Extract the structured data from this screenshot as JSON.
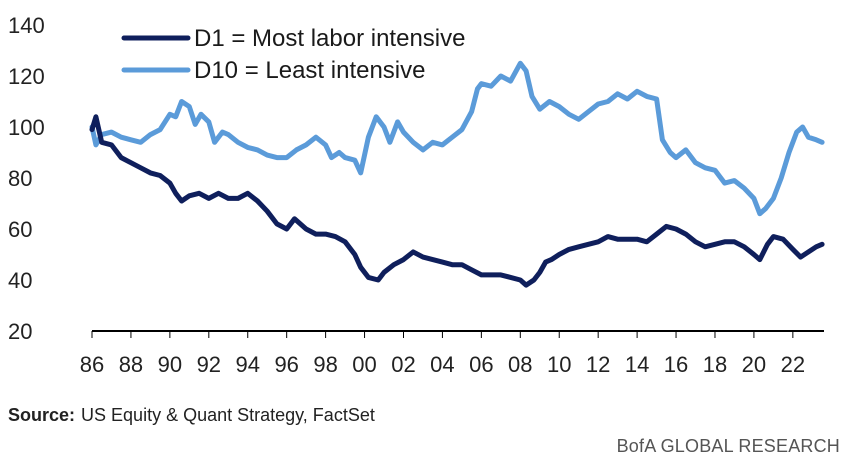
{
  "chart_data": {
    "type": "line",
    "xlim": [
      1986,
      2023.6
    ],
    "ylim": [
      20,
      140
    ],
    "y_ticks": [
      20,
      40,
      60,
      80,
      100,
      120,
      140
    ],
    "x_tick_values": [
      1986,
      1988,
      1990,
      1992,
      1994,
      1996,
      1998,
      2000,
      2002,
      2004,
      2006,
      2008,
      2010,
      2012,
      2014,
      2016,
      2018,
      2020,
      2022
    ],
    "x_tick_labels": [
      "86",
      "88",
      "90",
      "92",
      "94",
      "96",
      "98",
      "00",
      "02",
      "04",
      "06",
      "08",
      "10",
      "12",
      "14",
      "16",
      "18",
      "20",
      "22"
    ],
    "grid": false,
    "legend_position": "top-left",
    "series": [
      {
        "name": "D1 = Most labor intensive",
        "color": "#0f1f5c",
        "points": [
          [
            1986.0,
            99
          ],
          [
            1986.2,
            104
          ],
          [
            1986.5,
            94
          ],
          [
            1987.0,
            93
          ],
          [
            1987.5,
            88
          ],
          [
            1988.0,
            86
          ],
          [
            1988.5,
            84
          ],
          [
            1989.0,
            82
          ],
          [
            1989.5,
            81
          ],
          [
            1990.0,
            78
          ],
          [
            1990.3,
            74
          ],
          [
            1990.6,
            71
          ],
          [
            1991.0,
            73
          ],
          [
            1991.5,
            74
          ],
          [
            1992.0,
            72
          ],
          [
            1992.5,
            74
          ],
          [
            1993.0,
            72
          ],
          [
            1993.5,
            72
          ],
          [
            1994.0,
            74
          ],
          [
            1994.5,
            71
          ],
          [
            1995.0,
            67
          ],
          [
            1995.5,
            62
          ],
          [
            1996.0,
            60
          ],
          [
            1996.4,
            64
          ],
          [
            1997.0,
            60
          ],
          [
            1997.5,
            58
          ],
          [
            1998.0,
            58
          ],
          [
            1998.5,
            57
          ],
          [
            1999.0,
            55
          ],
          [
            1999.5,
            50
          ],
          [
            1999.8,
            45
          ],
          [
            2000.2,
            41
          ],
          [
            2000.7,
            40
          ],
          [
            2001.0,
            43
          ],
          [
            2001.5,
            46
          ],
          [
            2002.0,
            48
          ],
          [
            2002.5,
            51
          ],
          [
            2003.0,
            49
          ],
          [
            2003.5,
            48
          ],
          [
            2004.0,
            47
          ],
          [
            2004.5,
            46
          ],
          [
            2005.0,
            46
          ],
          [
            2005.5,
            44
          ],
          [
            2006.0,
            42
          ],
          [
            2006.5,
            42
          ],
          [
            2007.0,
            42
          ],
          [
            2007.5,
            41
          ],
          [
            2008.0,
            40
          ],
          [
            2008.3,
            38
          ],
          [
            2008.7,
            40
          ],
          [
            2009.0,
            43
          ],
          [
            2009.3,
            47
          ],
          [
            2009.6,
            48
          ],
          [
            2010.0,
            50
          ],
          [
            2010.5,
            52
          ],
          [
            2011.0,
            53
          ],
          [
            2011.5,
            54
          ],
          [
            2012.0,
            55
          ],
          [
            2012.5,
            57
          ],
          [
            2013.0,
            56
          ],
          [
            2013.5,
            56
          ],
          [
            2014.0,
            56
          ],
          [
            2014.5,
            55
          ],
          [
            2015.0,
            58
          ],
          [
            2015.5,
            61
          ],
          [
            2016.0,
            60
          ],
          [
            2016.5,
            58
          ],
          [
            2017.0,
            55
          ],
          [
            2017.5,
            53
          ],
          [
            2018.0,
            54
          ],
          [
            2018.5,
            55
          ],
          [
            2019.0,
            55
          ],
          [
            2019.5,
            53
          ],
          [
            2020.0,
            50
          ],
          [
            2020.3,
            48
          ],
          [
            2020.7,
            54
          ],
          [
            2021.0,
            57
          ],
          [
            2021.5,
            56
          ],
          [
            2022.0,
            52
          ],
          [
            2022.4,
            49
          ],
          [
            2022.8,
            51
          ],
          [
            2023.2,
            53
          ],
          [
            2023.5,
            54
          ]
        ]
      },
      {
        "name": "D10 = Least intensive",
        "color": "#5b9bd9",
        "points": [
          [
            1986.0,
            100
          ],
          [
            1986.2,
            93
          ],
          [
            1986.5,
            97
          ],
          [
            1987.0,
            98
          ],
          [
            1987.5,
            96
          ],
          [
            1988.0,
            95
          ],
          [
            1988.5,
            94
          ],
          [
            1989.0,
            97
          ],
          [
            1989.5,
            99
          ],
          [
            1990.0,
            105
          ],
          [
            1990.3,
            104
          ],
          [
            1990.6,
            110
          ],
          [
            1991.0,
            108
          ],
          [
            1991.3,
            101
          ],
          [
            1991.6,
            105
          ],
          [
            1992.0,
            102
          ],
          [
            1992.3,
            94
          ],
          [
            1992.7,
            98
          ],
          [
            1993.0,
            97
          ],
          [
            1993.5,
            94
          ],
          [
            1994.0,
            92
          ],
          [
            1994.5,
            91
          ],
          [
            1995.0,
            89
          ],
          [
            1995.5,
            88
          ],
          [
            1996.0,
            88
          ],
          [
            1996.5,
            91
          ],
          [
            1997.0,
            93
          ],
          [
            1997.5,
            96
          ],
          [
            1998.0,
            93
          ],
          [
            1998.3,
            88
          ],
          [
            1998.7,
            90
          ],
          [
            1999.0,
            88
          ],
          [
            1999.5,
            87
          ],
          [
            1999.8,
            82
          ],
          [
            2000.2,
            96
          ],
          [
            2000.6,
            104
          ],
          [
            2001.0,
            100
          ],
          [
            2001.3,
            94
          ],
          [
            2001.7,
            102
          ],
          [
            2002.0,
            98
          ],
          [
            2002.5,
            94
          ],
          [
            2003.0,
            91
          ],
          [
            2003.5,
            94
          ],
          [
            2004.0,
            93
          ],
          [
            2004.5,
            96
          ],
          [
            2005.0,
            99
          ],
          [
            2005.5,
            106
          ],
          [
            2005.8,
            115
          ],
          [
            2006.0,
            117
          ],
          [
            2006.5,
            116
          ],
          [
            2007.0,
            120
          ],
          [
            2007.5,
            118
          ],
          [
            2008.0,
            125
          ],
          [
            2008.3,
            122
          ],
          [
            2008.6,
            112
          ],
          [
            2009.0,
            107
          ],
          [
            2009.5,
            110
          ],
          [
            2010.0,
            108
          ],
          [
            2010.5,
            105
          ],
          [
            2011.0,
            103
          ],
          [
            2011.5,
            106
          ],
          [
            2012.0,
            109
          ],
          [
            2012.5,
            110
          ],
          [
            2013.0,
            113
          ],
          [
            2013.5,
            111
          ],
          [
            2014.0,
            114
          ],
          [
            2014.5,
            112
          ],
          [
            2015.0,
            111
          ],
          [
            2015.3,
            95
          ],
          [
            2015.7,
            90
          ],
          [
            2016.0,
            88
          ],
          [
            2016.5,
            91
          ],
          [
            2017.0,
            86
          ],
          [
            2017.5,
            84
          ],
          [
            2018.0,
            83
          ],
          [
            2018.5,
            78
          ],
          [
            2019.0,
            79
          ],
          [
            2019.5,
            76
          ],
          [
            2020.0,
            72
          ],
          [
            2020.3,
            66
          ],
          [
            2020.6,
            68
          ],
          [
            2021.0,
            72
          ],
          [
            2021.4,
            80
          ],
          [
            2021.8,
            90
          ],
          [
            2022.2,
            98
          ],
          [
            2022.5,
            100
          ],
          [
            2022.8,
            96
          ],
          [
            2023.2,
            95
          ],
          [
            2023.5,
            94
          ]
        ]
      }
    ]
  },
  "footer": {
    "source_label": "Source:",
    "source_text": "US Equity & Quant Strategy, FactSet",
    "brand": "BofA GLOBAL RESEARCH"
  }
}
